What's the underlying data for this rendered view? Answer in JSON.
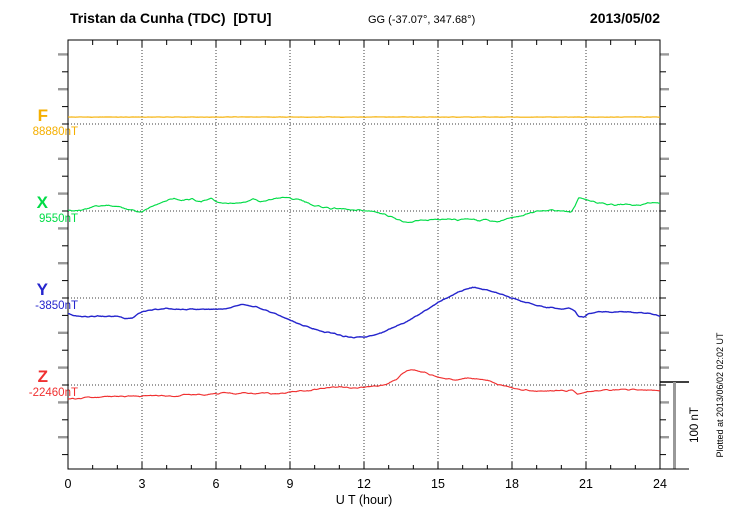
{
  "header": {
    "title": "Tristan da Cunha (TDC)  [DTU]",
    "coords": "GG (-37.07°, 347.68°)",
    "date": "2013/05/02"
  },
  "xaxis": {
    "label": "U T (hour)",
    "ticks": [
      "0",
      "3",
      "6",
      "9",
      "12",
      "15",
      "18",
      "21",
      "24"
    ]
  },
  "scale_bar": {
    "label": "100 nT",
    "span_nT": 100
  },
  "side_note": "Plotted at 2013/06/02 02:02 UT",
  "colors": {
    "F": "#F5AF00",
    "X": "#00DC46",
    "Y": "#2525CD",
    "Z": "#F03030",
    "frame": "#000000",
    "gray_tick": "#999999",
    "dotted": "#3c3c3c"
  },
  "chart_data": {
    "type": "line",
    "title": "Tristan da Cunha (TDC) [DTU] 2013/05/02",
    "xlabel": "U T (hour)",
    "x_range": [
      0,
      24
    ],
    "x_major_tick_step": 3,
    "x_minor_tick_step": 1,
    "grid": "dotted vertical lines every 3 h, dotted horizontal baseline per channel",
    "scale_bar_nT": 100,
    "points_format": "[hour_UT, offset_nT_from_baseline]",
    "series": [
      {
        "name": "F",
        "label": "F",
        "value_label": "88880nT",
        "baseline_nT": 88880,
        "color": "#F5AF00",
        "points": [
          [
            0,
            8
          ],
          [
            24,
            8
          ]
        ]
      },
      {
        "name": "X",
        "label": "X",
        "value_label": "9550nT",
        "baseline_nT": 9550,
        "color": "#00DC46",
        "points": [
          [
            0,
            0
          ],
          [
            0.5,
            1
          ],
          [
            1,
            5
          ],
          [
            1.4,
            6
          ],
          [
            1.8,
            6
          ],
          [
            2.2,
            4
          ],
          [
            2.6,
            1
          ],
          [
            2.9,
            -1
          ],
          [
            3.1,
            1
          ],
          [
            3.5,
            7
          ],
          [
            4,
            12
          ],
          [
            4.3,
            15
          ],
          [
            4.6,
            12
          ],
          [
            5,
            14
          ],
          [
            5.4,
            11
          ],
          [
            5.8,
            14
          ],
          [
            6.1,
            10
          ],
          [
            6.5,
            8
          ],
          [
            6.9,
            9
          ],
          [
            7.2,
            10
          ],
          [
            7.5,
            14
          ],
          [
            7.8,
            11
          ],
          [
            8.2,
            13
          ],
          [
            8.7,
            16
          ],
          [
            9,
            15
          ],
          [
            9.4,
            13
          ],
          [
            9.8,
            8
          ],
          [
            10.2,
            5
          ],
          [
            10.6,
            3
          ],
          [
            11,
            3
          ],
          [
            11.4,
            2
          ],
          [
            11.8,
            1
          ],
          [
            12.2,
            0
          ],
          [
            12.6,
            -2
          ],
          [
            13,
            -6
          ],
          [
            13.4,
            -10
          ],
          [
            13.8,
            -13
          ],
          [
            14.2,
            -11
          ],
          [
            14.6,
            -10
          ],
          [
            15,
            -9
          ],
          [
            15.4,
            -9
          ],
          [
            15.8,
            -10
          ],
          [
            16.2,
            -9
          ],
          [
            16.6,
            -11
          ],
          [
            17,
            -10
          ],
          [
            17.4,
            -13
          ],
          [
            17.7,
            -10
          ],
          [
            18,
            -7
          ],
          [
            18.4,
            -5
          ],
          [
            18.8,
            -2
          ],
          [
            19.2,
            0
          ],
          [
            19.5,
            1
          ],
          [
            19.8,
            0
          ],
          [
            20.1,
            0
          ],
          [
            20.4,
            -1
          ],
          [
            20.55,
            6
          ],
          [
            20.7,
            15
          ],
          [
            21,
            13
          ],
          [
            21.4,
            10
          ],
          [
            21.8,
            8
          ],
          [
            22.2,
            7
          ],
          [
            22.6,
            8
          ],
          [
            23,
            6
          ],
          [
            23.4,
            8
          ],
          [
            23.7,
            10
          ],
          [
            24,
            9
          ]
        ]
      },
      {
        "name": "Y",
        "label": "Y",
        "value_label": "-3850nT",
        "baseline_nT": -3850,
        "color": "#2525CD",
        "points": [
          [
            0,
            -18
          ],
          [
            0.4,
            -21
          ],
          [
            0.8,
            -22
          ],
          [
            1.2,
            -21
          ],
          [
            1.6,
            -21
          ],
          [
            2,
            -21
          ],
          [
            2.3,
            -24
          ],
          [
            2.6,
            -23
          ],
          [
            2.9,
            -17
          ],
          [
            3.2,
            -14
          ],
          [
            3.6,
            -13
          ],
          [
            4,
            -12
          ],
          [
            4.4,
            -13
          ],
          [
            4.8,
            -13
          ],
          [
            5.2,
            -13
          ],
          [
            5.6,
            -13
          ],
          [
            6,
            -13
          ],
          [
            6.4,
            -12
          ],
          [
            6.8,
            -9
          ],
          [
            7,
            -7
          ],
          [
            7.3,
            -8
          ],
          [
            7.6,
            -10
          ],
          [
            8,
            -14
          ],
          [
            8.4,
            -18
          ],
          [
            8.8,
            -23
          ],
          [
            9.2,
            -28
          ],
          [
            9.6,
            -32
          ],
          [
            10,
            -36
          ],
          [
            10.4,
            -39
          ],
          [
            10.8,
            -41
          ],
          [
            11.2,
            -44
          ],
          [
            11.5,
            -45
          ],
          [
            11.8,
            -45
          ],
          [
            12.1,
            -45
          ],
          [
            12.4,
            -43
          ],
          [
            12.8,
            -39
          ],
          [
            13.2,
            -34
          ],
          [
            13.6,
            -29
          ],
          [
            14,
            -23
          ],
          [
            14.4,
            -16
          ],
          [
            14.8,
            -9
          ],
          [
            15.2,
            -2
          ],
          [
            15.5,
            2
          ],
          [
            15.8,
            7
          ],
          [
            16.1,
            10
          ],
          [
            16.4,
            12
          ],
          [
            16.7,
            11
          ],
          [
            17,
            9
          ],
          [
            17.4,
            6
          ],
          [
            17.8,
            2
          ],
          [
            18.1,
            -1
          ],
          [
            18.4,
            -4
          ],
          [
            18.7,
            -6
          ],
          [
            19,
            -8
          ],
          [
            19.4,
            -11
          ],
          [
            19.7,
            -11
          ],
          [
            20,
            -13
          ],
          [
            20.3,
            -11
          ],
          [
            20.55,
            -15
          ],
          [
            20.7,
            -21
          ],
          [
            20.9,
            -22
          ],
          [
            21.1,
            -18
          ],
          [
            21.4,
            -16
          ],
          [
            21.7,
            -16
          ],
          [
            22,
            -16
          ],
          [
            22.4,
            -16
          ],
          [
            22.8,
            -16
          ],
          [
            23.2,
            -17
          ],
          [
            23.6,
            -18
          ],
          [
            24,
            -21
          ]
        ]
      },
      {
        "name": "Z",
        "label": "Z",
        "value_label": "-22460nT",
        "baseline_nT": -22460,
        "color": "#F03030",
        "points": [
          [
            0,
            -16
          ],
          [
            0.4,
            -16
          ],
          [
            0.8,
            -14
          ],
          [
            1.2,
            -14
          ],
          [
            1.6,
            -13
          ],
          [
            2,
            -13
          ],
          [
            2.4,
            -13
          ],
          [
            2.8,
            -13
          ],
          [
            3.2,
            -12
          ],
          [
            3.6,
            -12
          ],
          [
            4,
            -13
          ],
          [
            4.4,
            -13
          ],
          [
            4.8,
            -11
          ],
          [
            5.2,
            -11
          ],
          [
            5.6,
            -11
          ],
          [
            6,
            -10
          ],
          [
            6.4,
            -9
          ],
          [
            6.8,
            -10
          ],
          [
            7.2,
            -9
          ],
          [
            7.6,
            -10
          ],
          [
            8,
            -9
          ],
          [
            8.4,
            -10
          ],
          [
            8.8,
            -9
          ],
          [
            9.2,
            -7
          ],
          [
            9.6,
            -7
          ],
          [
            10,
            -5
          ],
          [
            10.3,
            -4
          ],
          [
            10.6,
            -3
          ],
          [
            11,
            -2
          ],
          [
            11.4,
            -3
          ],
          [
            11.8,
            -3
          ],
          [
            12.2,
            -2
          ],
          [
            12.6,
            -1
          ],
          [
            13,
            2
          ],
          [
            13.3,
            6
          ],
          [
            13.6,
            14
          ],
          [
            13.9,
            18
          ],
          [
            14.2,
            16
          ],
          [
            14.6,
            13
          ],
          [
            15,
            9
          ],
          [
            15.4,
            7
          ],
          [
            15.8,
            6
          ],
          [
            16.2,
            8
          ],
          [
            16.6,
            7
          ],
          [
            17,
            5
          ],
          [
            17.4,
            1
          ],
          [
            17.8,
            -2
          ],
          [
            18.2,
            -5
          ],
          [
            18.6,
            -6
          ],
          [
            19,
            -7
          ],
          [
            19.4,
            -7
          ],
          [
            19.8,
            -6
          ],
          [
            20.2,
            -7
          ],
          [
            20.45,
            -5
          ],
          [
            20.65,
            -10
          ],
          [
            20.9,
            -9
          ],
          [
            21.2,
            -7
          ],
          [
            21.6,
            -6
          ],
          [
            22,
            -6
          ],
          [
            22.4,
            -5
          ],
          [
            22.8,
            -5
          ],
          [
            23.2,
            -6
          ],
          [
            23.6,
            -6
          ],
          [
            24,
            -6
          ]
        ]
      }
    ]
  }
}
